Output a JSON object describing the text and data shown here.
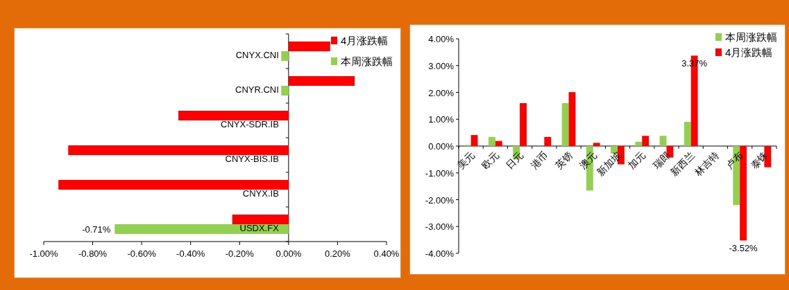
{
  "chart_data": [
    {
      "type": "bar",
      "orientation": "horizontal",
      "categories": [
        "CNYX.CNI",
        "CNYR.CNI",
        "CNYX-SDR.IB",
        "CNYX-BIS.IB",
        "CNYX.IB",
        "USDX.FX"
      ],
      "series": [
        {
          "name": "4月涨跌幅",
          "color": "#ff0000",
          "values": [
            0.17,
            0.27,
            -0.45,
            -0.9,
            -0.94,
            -0.23
          ]
        },
        {
          "name": "本周涨跌幅",
          "color": "#92d050",
          "values": [
            -0.03,
            -0.03,
            null,
            null,
            null,
            -0.71
          ],
          "value_labels": [
            null,
            null,
            null,
            null,
            null,
            "-0.71%"
          ]
        }
      ],
      "xlim": [
        -1.0,
        0.4
      ],
      "xticks": [
        {
          "value": -1.0,
          "label": "-1.00%"
        },
        {
          "value": -0.8,
          "label": "-0.80%"
        },
        {
          "value": -0.6,
          "label": "-0.60%"
        },
        {
          "value": -0.4,
          "label": "-0.40%"
        },
        {
          "value": -0.2,
          "label": "-0.20%"
        },
        {
          "value": 0,
          "label": "0.00%"
        },
        {
          "value": 0.2,
          "label": "0.20%"
        },
        {
          "value": 0.4,
          "label": "0.40%"
        }
      ],
      "legend": "top right",
      "grid": false
    },
    {
      "type": "bar",
      "categories": [
        "美元",
        "欧元",
        "日元",
        "港币",
        "英镑",
        "澳元",
        "新加坡",
        "加元",
        "瑞郎",
        "新西兰",
        "林吉特",
        "卢布",
        "泰铢"
      ],
      "series": [
        {
          "name": "本周涨跌幅",
          "color": "#92d050",
          "values": [
            0.04,
            0.34,
            -0.5,
            null,
            1.6,
            -1.66,
            -0.28,
            0.16,
            0.38,
            0.9,
            null,
            -2.2,
            null
          ]
        },
        {
          "name": "4月涨跌幅",
          "color": "#ff0000",
          "values": [
            0.41,
            0.19,
            1.6,
            0.34,
            2.01,
            0.12,
            -0.68,
            0.38,
            -0.43,
            3.37,
            null,
            -3.52,
            -0.79
          ],
          "value_labels": [
            null,
            null,
            null,
            null,
            null,
            null,
            null,
            null,
            null,
            "3.37%",
            null,
            "-3.52%",
            null
          ]
        }
      ],
      "ylim": [
        -4.0,
        4.0
      ],
      "yticks": [
        {
          "value": -4.0,
          "label": "-4.00%"
        },
        {
          "value": -3.0,
          "label": "-3.00%"
        },
        {
          "value": -2.0,
          "label": "-2.00%"
        },
        {
          "value": -1.0,
          "label": "-1.00%"
        },
        {
          "value": 0,
          "label": "0.00%"
        },
        {
          "value": 1.0,
          "label": "1.00%"
        },
        {
          "value": 2.0,
          "label": "2.00%"
        },
        {
          "value": 3.0,
          "label": "3.00%"
        },
        {
          "value": 4.0,
          "label": "4.00%"
        }
      ],
      "legend": "top right",
      "grid": false
    }
  ]
}
